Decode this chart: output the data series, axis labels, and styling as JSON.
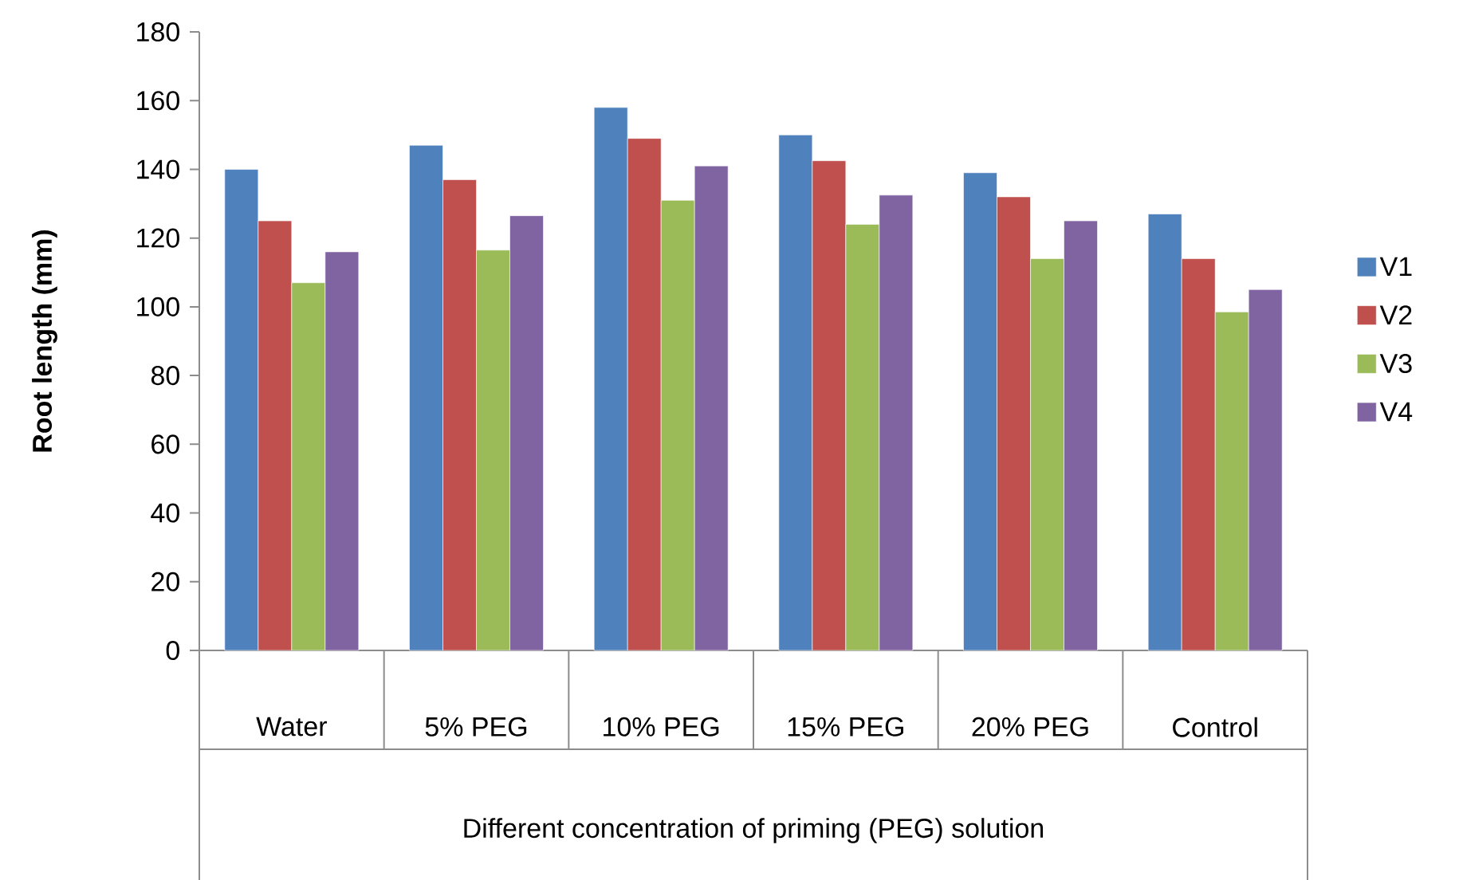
{
  "chart_data": {
    "type": "bar",
    "xlabel": "Different concentration of priming (PEG) solution",
    "ylabel": "Root length (mm)",
    "categories": [
      "Water",
      "5% PEG",
      "10% PEG",
      "15% PEG",
      "20% PEG",
      "Control"
    ],
    "series": [
      {
        "name": "V1",
        "color": "#4f81bd",
        "values": [
          140,
          147,
          158,
          150,
          139,
          127
        ]
      },
      {
        "name": "V2",
        "color": "#c0504d",
        "values": [
          125,
          137,
          149,
          142.5,
          132,
          114
        ]
      },
      {
        "name": "V3",
        "color": "#9bbb59",
        "values": [
          107,
          116.5,
          131,
          124,
          114,
          98.5
        ]
      },
      {
        "name": "V4",
        "color": "#8064a2",
        "values": [
          116,
          126.5,
          141,
          132.5,
          125,
          105
        ]
      }
    ],
    "ylim": [
      0,
      180
    ],
    "yticks": [
      0,
      20,
      40,
      60,
      80,
      100,
      120,
      140,
      160,
      180
    ],
    "grid": false,
    "legend": "right"
  }
}
